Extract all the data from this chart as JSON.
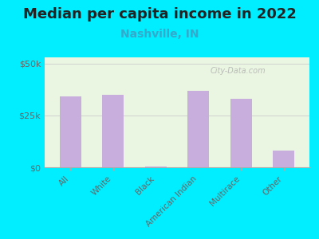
{
  "title": "Median per capita income in 2022",
  "subtitle": "Nashville, IN",
  "categories": [
    "All",
    "White",
    "Black",
    "American Indian",
    "Multirace",
    "Other"
  ],
  "values": [
    34000,
    35000,
    200,
    37000,
    33000,
    8000
  ],
  "bar_color": "#c8aedd",
  "background_color": "#00eeff",
  "plot_bg": "#eaf5e2",
  "title_fontsize": 13,
  "subtitle_fontsize": 10,
  "ylabel_ticks": [
    "$0",
    "$25k",
    "$50k"
  ],
  "ytick_vals": [
    0,
    25000,
    50000
  ],
  "ylim": [
    0,
    53000
  ],
  "watermark": "City-Data.com",
  "tick_label_color": "#666666",
  "title_color": "#222222",
  "subtitle_color": "#33aacc"
}
